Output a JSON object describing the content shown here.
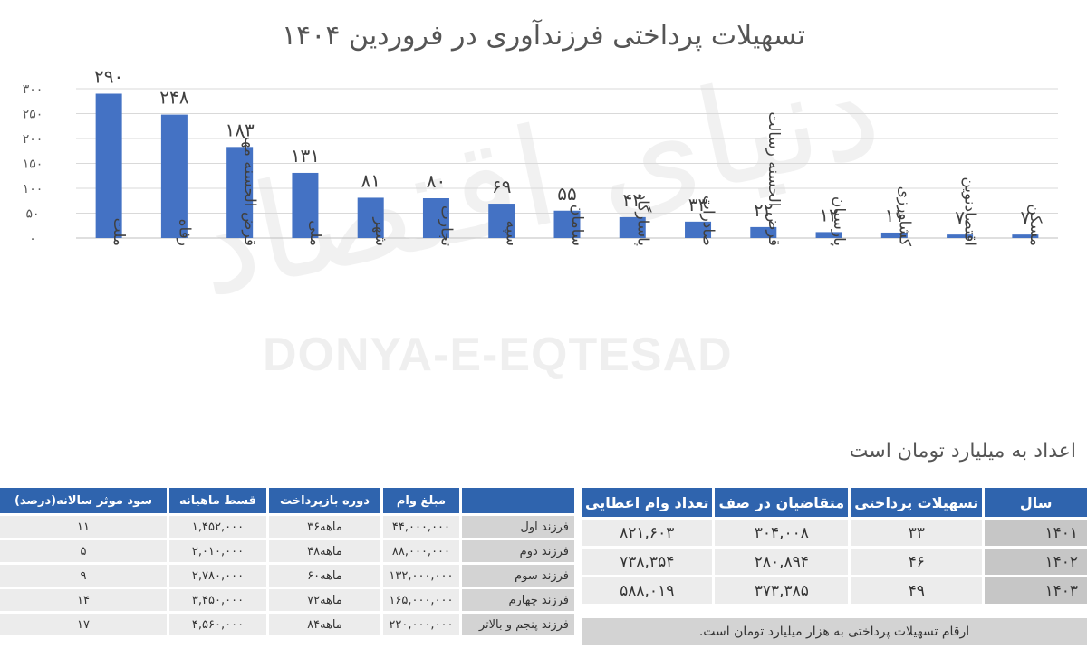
{
  "chart_data": {
    "type": "bar",
    "title": "تسهیلات پرداختی فرزندآوری در فروردین ۱۴۰۴",
    "categories": [
      "ملت",
      "رفاه",
      "قرض الحسنه مهر",
      "ملی",
      "شهر",
      "تجارت",
      "سپه",
      "سامان",
      "پاسارگاد",
      "صادرات",
      "قرض الحسنه رسالت",
      "پارسیان",
      "کشاورزی",
      "اقتصادنوین",
      "مسکن"
    ],
    "values": [
      290,
      248,
      183,
      131,
      81,
      80,
      69,
      55,
      42,
      33,
      22,
      12,
      11,
      7,
      7
    ],
    "value_labels": [
      "۲۹۰",
      "۲۴۸",
      "۱۸۳",
      "۱۳۱",
      "۸۱",
      "۸۰",
      "۶۹",
      "۵۵",
      "۴۲",
      "۳۳",
      "۲۲",
      "۱۲",
      "۱۱",
      "۷",
      "۷"
    ],
    "yticks": [
      0,
      50,
      100,
      150,
      200,
      250,
      300
    ],
    "ytick_labels": [
      "۰",
      "۵۰",
      "۱۰۰",
      "۱۵۰",
      "۲۰۰",
      "۲۵۰",
      "۳۰۰"
    ],
    "ylim": [
      0,
      300
    ],
    "grid": true,
    "bar_color": "#4472c4",
    "note": "اعداد به میلیارد تومان است"
  },
  "watermark": {
    "logo_text": "دنیای اقتصاد",
    "latin_text": "DONYA-E-EQTESAD"
  },
  "loan_table": {
    "headers": [
      "سود موثر سالانه(درصد)",
      "قسط ماهیانه",
      "دوره بازپرداخت",
      "مبلغ وام",
      ""
    ],
    "rows": [
      {
        "label": "فرزند اول",
        "amount": "۴۴,۰۰۰,۰۰۰",
        "period": "۳۶ماهه",
        "installment": "۱,۴۵۲,۰۰۰",
        "rate": "۱۱"
      },
      {
        "label": "فرزند دوم",
        "amount": "۸۸,۰۰۰,۰۰۰",
        "period": "۴۸ماهه",
        "installment": "۲,۰۱۰,۰۰۰",
        "rate": "۵"
      },
      {
        "label": "فرزند سوم",
        "amount": "۱۳۲,۰۰۰,۰۰۰",
        "period": "۶۰ماهه",
        "installment": "۲,۷۸۰,۰۰۰",
        "rate": "۹"
      },
      {
        "label": "فرزند چهارم",
        "amount": "۱۶۵,۰۰۰,۰۰۰",
        "period": "۷۲ماهه",
        "installment": "۳,۴۵۰,۰۰۰",
        "rate": "۱۴"
      },
      {
        "label": "فرزند پنجم و بالاتر",
        "amount": "۲۲۰,۰۰۰,۰۰۰",
        "period": "۸۴ماهه",
        "installment": "۴,۵۶۰,۰۰۰",
        "rate": "۱۷"
      }
    ]
  },
  "year_table": {
    "headers": [
      "تعداد وام اعطایی",
      "متقاضیان در صف",
      "تسهیلات پرداختی",
      "سال"
    ],
    "rows": [
      {
        "year": "۱۴۰۱",
        "paid": "۳۳",
        "queue": "۳۰۴,۰۰۸",
        "count": "۸۲۱,۶۰۳"
      },
      {
        "year": "۱۴۰۲",
        "paid": "۴۶",
        "queue": "۲۸۰,۸۹۴",
        "count": "۷۳۸,۳۵۴"
      },
      {
        "year": "۱۴۰۳",
        "paid": "۴۹",
        "queue": "۳۷۳,۳۸۵",
        "count": "۵۸۸,۰۱۹"
      }
    ],
    "note": "ارقام تسهیلات پرداختی به هزار میلیارد تومان است."
  }
}
